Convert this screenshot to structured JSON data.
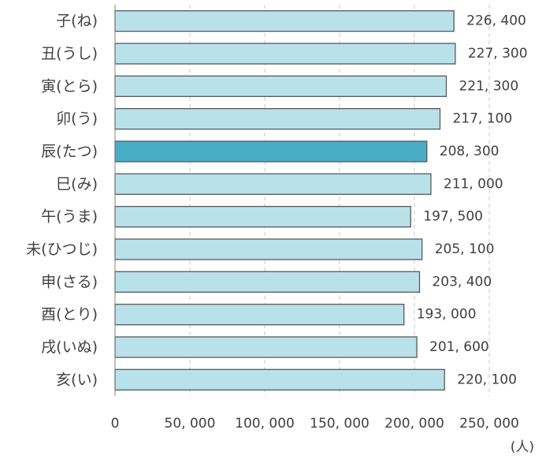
{
  "chart_data": {
    "type": "bar",
    "orientation": "horizontal",
    "categories": [
      "子(ね)",
      "丑(うし)",
      "寅(とら)",
      "卯(う)",
      "辰(たつ)",
      "巳(み)",
      "午(うま)",
      "未(ひつじ)",
      "申(さる)",
      "酉(とり)",
      "戌(いぬ)",
      "亥(い)"
    ],
    "values": [
      226400,
      227300,
      221300,
      217100,
      208300,
      211000,
      197500,
      205100,
      203400,
      193000,
      201600,
      220100
    ],
    "value_labels": [
      "226, 400",
      "227, 300",
      "221, 300",
      "217, 100",
      "208, 300",
      "211, 000",
      "197, 500",
      "205, 100",
      "203, 400",
      "193, 000",
      "201, 600",
      "220, 100"
    ],
    "highlight_index": 4,
    "xlim": [
      0,
      250000
    ],
    "x_ticks": [
      0,
      50000,
      100000,
      150000,
      200000,
      250000
    ],
    "x_tick_labels": [
      "0",
      "50, 000",
      "100, 000",
      "150, 000",
      "200, 000",
      "250, 000"
    ],
    "unit_label": "(人)",
    "grid": true,
    "colors": {
      "bar": "#b9e1ea",
      "bar_highlight": "#4aadc6",
      "bar_stroke": "#595959"
    }
  }
}
